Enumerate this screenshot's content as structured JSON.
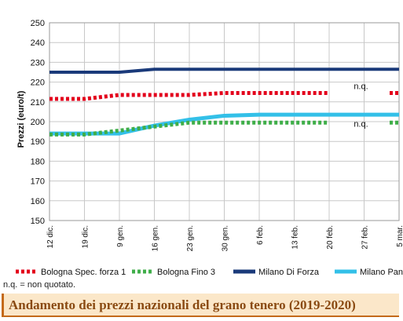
{
  "chart_data": {
    "type": "line",
    "title": "",
    "xlabel": "",
    "ylabel": "Prezzi (euro/t)",
    "ylim": [
      150,
      250
    ],
    "yticks": [
      150,
      160,
      170,
      180,
      190,
      200,
      210,
      220,
      230,
      240,
      250
    ],
    "grid": true,
    "categories": [
      "12 dic.",
      "19 dic.",
      "9 gen.",
      "16 gen.",
      "23 gen.",
      "30 gen.",
      "6 feb.",
      "13 feb.",
      "20 feb.",
      "27 feb.",
      "5 mar."
    ],
    "series": [
      {
        "name": "Bologna Spec. forza 1",
        "color": "#e3001b",
        "style": "dotted",
        "values": [
          211.5,
          211.5,
          213.5,
          213.5,
          213.5,
          214.5,
          214.5,
          214.5,
          214.5,
          null,
          214.5
        ]
      },
      {
        "name": "Bologna Fino 3",
        "color": "#3fae49",
        "style": "dotted",
        "values": [
          193.5,
          193.5,
          195.5,
          197.5,
          199.5,
          199.5,
          199.5,
          199.5,
          199.5,
          null,
          199.5
        ]
      },
      {
        "name": "Milano Di Forza",
        "color": "#1a3a7a",
        "style": "solid",
        "values": [
          225,
          225,
          225,
          226.5,
          226.5,
          226.5,
          226.5,
          226.5,
          226.5,
          226.5,
          226.5
        ]
      },
      {
        "name": "Milano Panificabile",
        "color": "#33c0e8",
        "style": "solid",
        "values": [
          194,
          194,
          194,
          198,
          201,
          203,
          203.5,
          203.5,
          203.5,
          203.5,
          203.5
        ]
      }
    ],
    "annotations": [
      {
        "text": "n.q.",
        "x": "27 feb.",
        "y": 218
      },
      {
        "text": "n.q.",
        "x": "27 feb.",
        "y": 199
      }
    ]
  },
  "note": "n.q. = non quotato.",
  "caption": "Andamento dei prezzi nazionali del grano tenero (2019-2020)"
}
